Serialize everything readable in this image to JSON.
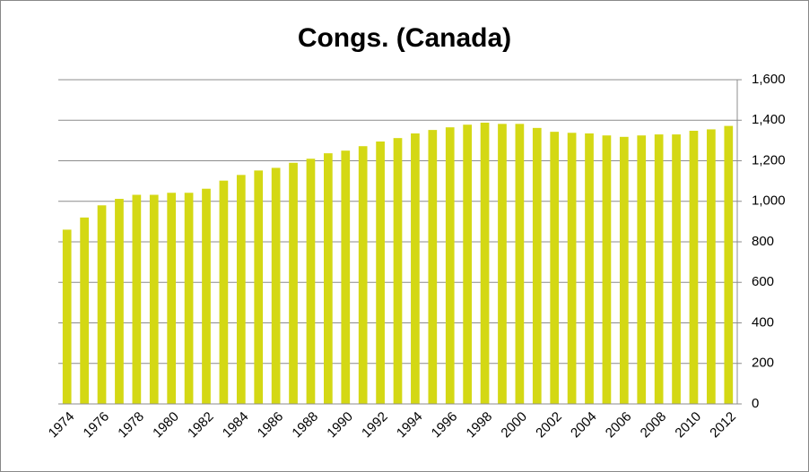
{
  "chart_data": {
    "type": "bar",
    "title": "Congs. (Canada)",
    "categories": [
      "1974",
      null,
      "1976",
      null,
      "1978",
      null,
      "1980",
      null,
      "1982",
      null,
      "1984",
      null,
      "1986",
      null,
      "1988",
      null,
      "1990",
      null,
      "1992",
      null,
      "1994",
      null,
      "1996",
      null,
      "1998",
      null,
      "2000",
      null,
      "2002",
      null,
      "2004",
      null,
      "2006",
      null,
      "2008",
      null,
      "2010",
      null,
      "2012"
    ],
    "values": [
      860,
      920,
      980,
      1012,
      1032,
      1032,
      1042,
      1042,
      1062,
      1102,
      1130,
      1152,
      1165,
      1190,
      1210,
      1237,
      1250,
      1272,
      1295,
      1312,
      1335,
      1352,
      1365,
      1378,
      1388,
      1382,
      1382,
      1362,
      1343,
      1338,
      1335,
      1325,
      1318,
      1325,
      1330,
      1330,
      1348,
      1355,
      1372
    ],
    "color": "#d4d814",
    "ylim": [
      0,
      1600
    ],
    "yticks": [
      0,
      200,
      400,
      600,
      800,
      {
        "value": 1000,
        "label": "1,000"
      },
      {
        "value": 1200,
        "label": "1,200"
      },
      {
        "value": 1400,
        "label": "1,400"
      },
      {
        "value": 1600,
        "label": "1,600"
      }
    ],
    "grid": true
  }
}
